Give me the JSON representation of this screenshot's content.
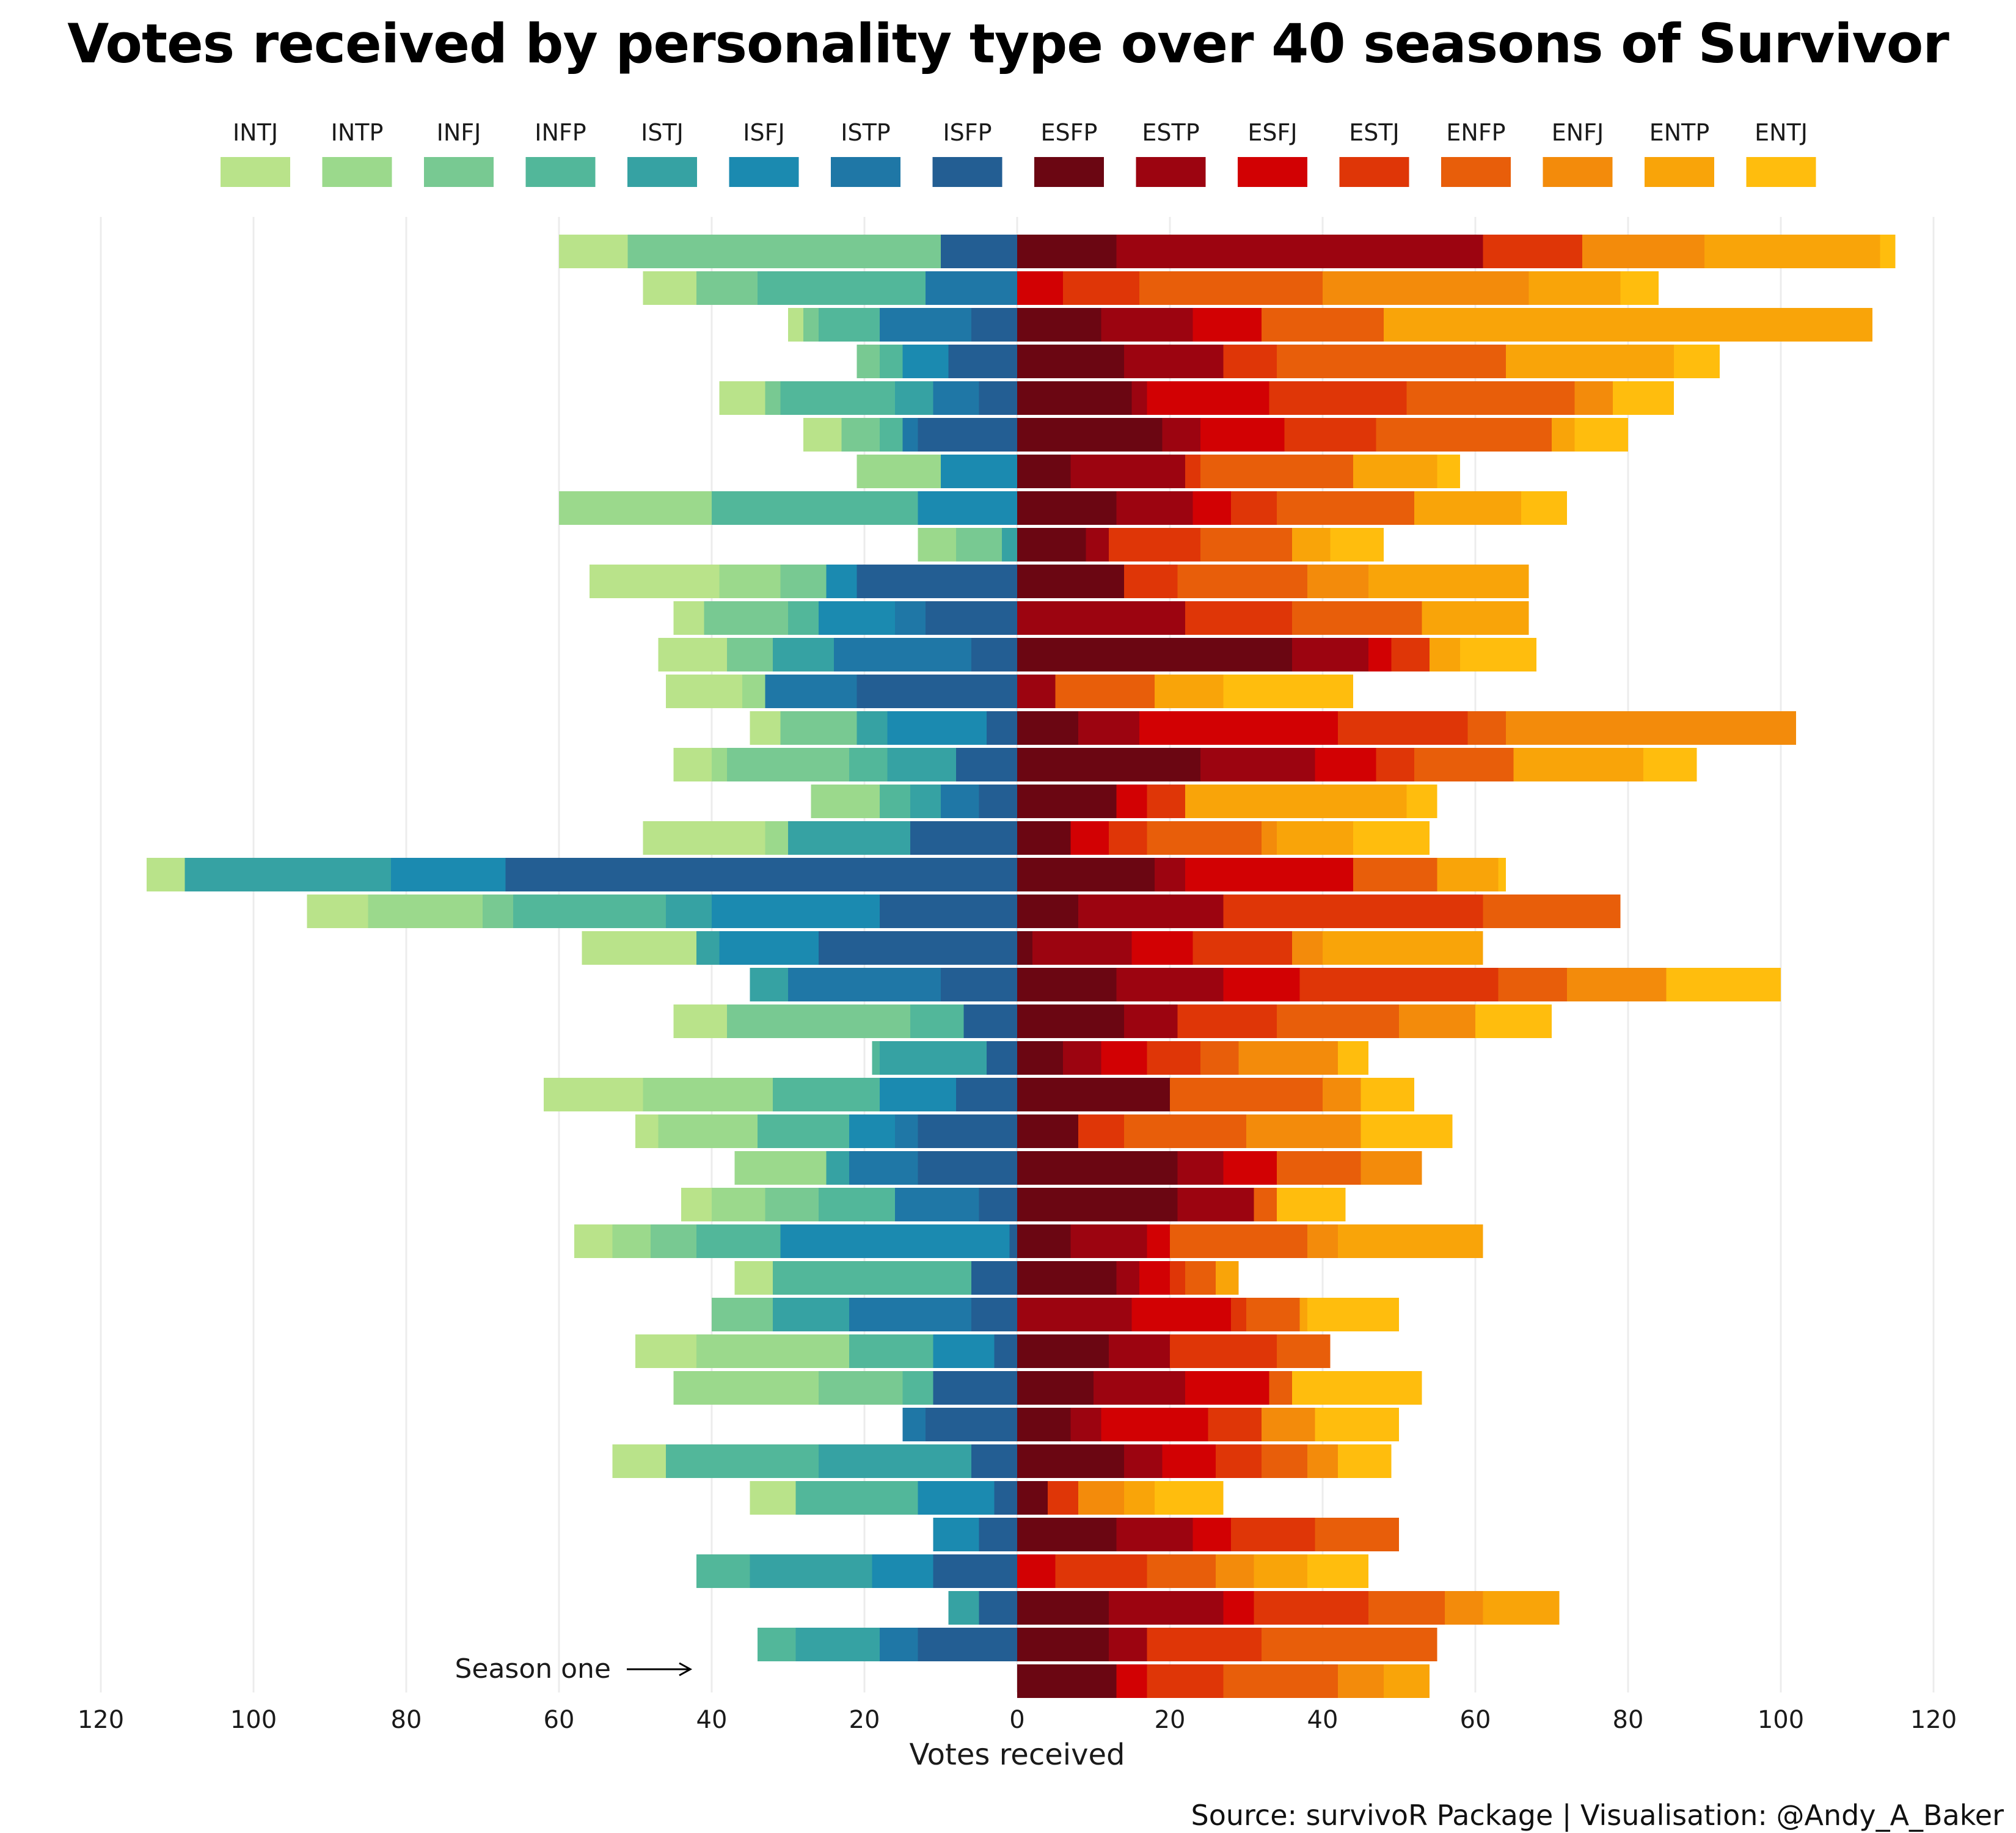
{
  "title": "Votes received by personality type over 40 seasons of Survivor",
  "source": "Source: survivoR Package | Visualisation: @Andy_A_Baker",
  "chart_data": {
    "type": "bar",
    "orientation": "horizontal-diverging",
    "xlabel": "Votes received",
    "xlim": [
      -130,
      120
    ],
    "x_ticks": [
      -120,
      -100,
      -80,
      -60,
      -40,
      -20,
      0,
      20,
      40,
      60,
      80,
      100,
      120
    ],
    "grid": "vertical",
    "legend_position": "top",
    "annotation": "Season one",
    "rows_order": "top row = season 40, bottom row = season 1",
    "left_types": [
      "INTJ",
      "INTP",
      "INFJ",
      "INFP",
      "ISTJ",
      "ISFJ",
      "ISTP",
      "ISFP"
    ],
    "right_types": [
      "ESFP",
      "ESTP",
      "ESFJ",
      "ESTJ",
      "ENFP",
      "ENFJ",
      "ENTP",
      "ENTJ"
    ],
    "legend": [
      {
        "name": "INTJ",
        "color": "#b9e38a"
      },
      {
        "name": "INTP",
        "color": "#9bd98c"
      },
      {
        "name": "INFJ",
        "color": "#78c992"
      },
      {
        "name": "INFP",
        "color": "#52b79a"
      },
      {
        "name": "ISTJ",
        "color": "#36a2a3"
      },
      {
        "name": "ISFJ",
        "color": "#1b8ab0"
      },
      {
        "name": "ISTP",
        "color": "#1f77a6"
      },
      {
        "name": "ISFP",
        "color": "#235e93"
      },
      {
        "name": "ESFP",
        "color": "#6b0612"
      },
      {
        "name": "ESTP",
        "color": "#9c0410"
      },
      {
        "name": "ESFJ",
        "color": "#d20103"
      },
      {
        "name": "ESTJ",
        "color": "#df3607"
      },
      {
        "name": "ENFP",
        "color": "#e85e0a"
      },
      {
        "name": "ENFJ",
        "color": "#f38b0b"
      },
      {
        "name": "ENTP",
        "color": "#f9a409"
      },
      {
        "name": "ENTJ",
        "color": "#ffbd0d"
      }
    ],
    "series_left": [
      [
        9,
        0,
        41,
        0,
        0,
        0,
        0,
        10
      ],
      [
        7,
        0,
        8,
        22,
        0,
        0,
        12,
        0
      ],
      [
        2,
        0,
        2,
        8,
        0,
        0,
        12,
        6
      ],
      [
        0,
        0,
        3,
        3,
        0,
        6,
        0,
        9
      ],
      [
        6,
        0,
        2,
        15,
        5,
        0,
        6,
        5
      ],
      [
        5,
        0,
        5,
        3,
        0,
        0,
        2,
        13
      ],
      [
        0,
        11,
        0,
        0,
        0,
        10,
        0,
        0
      ],
      [
        0,
        20,
        0,
        27,
        0,
        13,
        0,
        0
      ],
      [
        0,
        5,
        6,
        0,
        2,
        0,
        0,
        0
      ],
      [
        17,
        8,
        6,
        0,
        0,
        4,
        0,
        21
      ],
      [
        4,
        0,
        11,
        4,
        0,
        10,
        4,
        12
      ],
      [
        9,
        0,
        6,
        0,
        8,
        0,
        18,
        6
      ],
      [
        10,
        3,
        0,
        0,
        0,
        0,
        12,
        21
      ],
      [
        4,
        0,
        10,
        0,
        4,
        13,
        0,
        4
      ],
      [
        5,
        2,
        16,
        5,
        9,
        0,
        0,
        8
      ],
      [
        0,
        9,
        0,
        4,
        4,
        0,
        5,
        5
      ],
      [
        16,
        3,
        0,
        0,
        16,
        0,
        0,
        14
      ],
      [
        5,
        0,
        0,
        0,
        27,
        15,
        0,
        67
      ],
      [
        8,
        15,
        4,
        20,
        6,
        22,
        0,
        18
      ],
      [
        15,
        0,
        0,
        0,
        3,
        13,
        0,
        26
      ],
      [
        0,
        0,
        0,
        0,
        5,
        0,
        20,
        10
      ],
      [
        7,
        0,
        24,
        7,
        0,
        0,
        0,
        7
      ],
      [
        0,
        0,
        0,
        1,
        14,
        0,
        0,
        4
      ],
      [
        13,
        17,
        0,
        14,
        0,
        10,
        0,
        8
      ],
      [
        3,
        13,
        0,
        12,
        0,
        6,
        3,
        13
      ],
      [
        0,
        12,
        0,
        0,
        3,
        0,
        9,
        13
      ],
      [
        4,
        7,
        7,
        10,
        0,
        0,
        11,
        5
      ],
      [
        5,
        5,
        6,
        11,
        0,
        30,
        0,
        1
      ],
      [
        5,
        0,
        0,
        26,
        0,
        0,
        0,
        6
      ],
      [
        0,
        0,
        8,
        0,
        10,
        0,
        16,
        6
      ],
      [
        8,
        20,
        0,
        11,
        0,
        8,
        0,
        3
      ],
      [
        0,
        19,
        11,
        4,
        0,
        0,
        0,
        11
      ],
      [
        0,
        0,
        0,
        0,
        0,
        0,
        3,
        12
      ],
      [
        7,
        0,
        0,
        20,
        20,
        0,
        0,
        6
      ],
      [
        6,
        0,
        0,
        16,
        0,
        10,
        0,
        3
      ],
      [
        0,
        0,
        0,
        0,
        0,
        6,
        0,
        5
      ],
      [
        0,
        0,
        0,
        7,
        16,
        8,
        0,
        11
      ],
      [
        0,
        0,
        0,
        0,
        4,
        0,
        0,
        5
      ],
      [
        0,
        0,
        0,
        5,
        11,
        0,
        5,
        13
      ],
      [
        0,
        0,
        0,
        0,
        0,
        0,
        0,
        0
      ]
    ],
    "series_right": [
      [
        13,
        48,
        0,
        13,
        0,
        16,
        23,
        2
      ],
      [
        0,
        0,
        6,
        10,
        24,
        27,
        12,
        5
      ],
      [
        11,
        12,
        9,
        0,
        16,
        0,
        64,
        0
      ],
      [
        14,
        13,
        0,
        7,
        30,
        0,
        22,
        6
      ],
      [
        15,
        2,
        16,
        18,
        22,
        5,
        0,
        8
      ],
      [
        19,
        5,
        11,
        12,
        23,
        0,
        3,
        7
      ],
      [
        7,
        15,
        0,
        2,
        20,
        0,
        11,
        3
      ],
      [
        13,
        10,
        5,
        6,
        18,
        0,
        14,
        6
      ],
      [
        9,
        3,
        0,
        12,
        12,
        0,
        5,
        7
      ],
      [
        14,
        0,
        0,
        7,
        17,
        8,
        21,
        0
      ],
      [
        0,
        22,
        0,
        14,
        17,
        0,
        14,
        0
      ],
      [
        36,
        10,
        3,
        5,
        0,
        0,
        4,
        10
      ],
      [
        0,
        5,
        0,
        0,
        13,
        0,
        9,
        17
      ],
      [
        8,
        8,
        26,
        17,
        5,
        38,
        0,
        0
      ],
      [
        24,
        15,
        8,
        5,
        13,
        0,
        17,
        7
      ],
      [
        13,
        0,
        4,
        5,
        0,
        0,
        29,
        4
      ],
      [
        7,
        0,
        5,
        5,
        15,
        2,
        10,
        10
      ],
      [
        18,
        4,
        22,
        0,
        11,
        0,
        8,
        1
      ],
      [
        8,
        19,
        0,
        34,
        18,
        0,
        0,
        0
      ],
      [
        2,
        13,
        8,
        13,
        0,
        4,
        21,
        0
      ],
      [
        13,
        14,
        10,
        26,
        9,
        13,
        0,
        15
      ],
      [
        14,
        7,
        0,
        13,
        16,
        10,
        0,
        10
      ],
      [
        6,
        5,
        6,
        7,
        5,
        13,
        0,
        4
      ],
      [
        20,
        0,
        0,
        0,
        20,
        5,
        0,
        7
      ],
      [
        8,
        0,
        0,
        6,
        16,
        15,
        0,
        12
      ],
      [
        21,
        6,
        7,
        0,
        11,
        8,
        0,
        0
      ],
      [
        21,
        10,
        0,
        0,
        3,
        0,
        0,
        9
      ],
      [
        7,
        10,
        3,
        0,
        18,
        4,
        19,
        0
      ],
      [
        13,
        3,
        4,
        2,
        4,
        0,
        3,
        0
      ],
      [
        0,
        15,
        13,
        2,
        7,
        0,
        1,
        12
      ],
      [
        12,
        8,
        0,
        14,
        7,
        0,
        0,
        0
      ],
      [
        10,
        12,
        11,
        0,
        3,
        0,
        0,
        17
      ],
      [
        7,
        4,
        14,
        7,
        0,
        7,
        0,
        11
      ],
      [
        14,
        5,
        7,
        6,
        6,
        4,
        0,
        7
      ],
      [
        4,
        0,
        0,
        4,
        0,
        6,
        4,
        9
      ],
      [
        13,
        10,
        5,
        11,
        11,
        0,
        0,
        0
      ],
      [
        0,
        0,
        5,
        12,
        9,
        5,
        7,
        8
      ],
      [
        12,
        15,
        4,
        15,
        10,
        5,
        10,
        0
      ],
      [
        12,
        5,
        0,
        15,
        23,
        0,
        0,
        0
      ],
      [
        13,
        0,
        4,
        10,
        15,
        6,
        6,
        0
      ]
    ]
  }
}
